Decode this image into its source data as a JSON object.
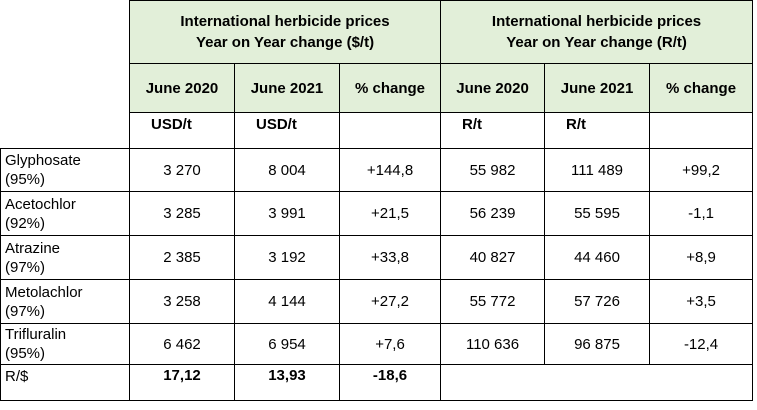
{
  "header": {
    "usd_group": [
      "International herbicide prices",
      "Year on Year change  ($/t)"
    ],
    "rand_group": [
      "International herbicide prices",
      "Year on Year change  (R/t)"
    ],
    "columns": [
      "June 2020",
      "June 2021",
      "% change",
      "June 2020",
      "June 2021",
      "% change"
    ],
    "units": [
      "USD/t",
      "USD/t",
      "",
      "R/t",
      "R/t",
      ""
    ]
  },
  "rows": [
    {
      "name": [
        "Glyphosate",
        "(95%)"
      ],
      "values": [
        "3 270",
        "8 004",
        "+144,8",
        "55 982",
        "111 489",
        "+99,2"
      ]
    },
    {
      "name": [
        "Acetochlor",
        "(92%)"
      ],
      "values": [
        "3 285",
        "3 991",
        "+21,5",
        "56 239",
        "55 595",
        "-1,1"
      ]
    },
    {
      "name": [
        "Atrazine",
        "(97%)"
      ],
      "values": [
        "2 385",
        "3 192",
        "+33,8",
        "40 827",
        "44 460",
        "+8,9"
      ]
    },
    {
      "name": [
        "Metolachlor",
        "(97%)"
      ],
      "values": [
        "3 258",
        "4 144",
        "+27,2",
        "55 772",
        "57 726",
        "+3,5"
      ]
    },
    {
      "name": [
        "Trifluralin",
        "(95%)"
      ],
      "values": [
        "6 462",
        "6 954",
        "+7,6",
        "110 636",
        "96 875",
        "-12,4"
      ]
    }
  ],
  "exchange": {
    "label": "R/$",
    "values": [
      "17,12",
      "13,93",
      "-18,6"
    ]
  }
}
